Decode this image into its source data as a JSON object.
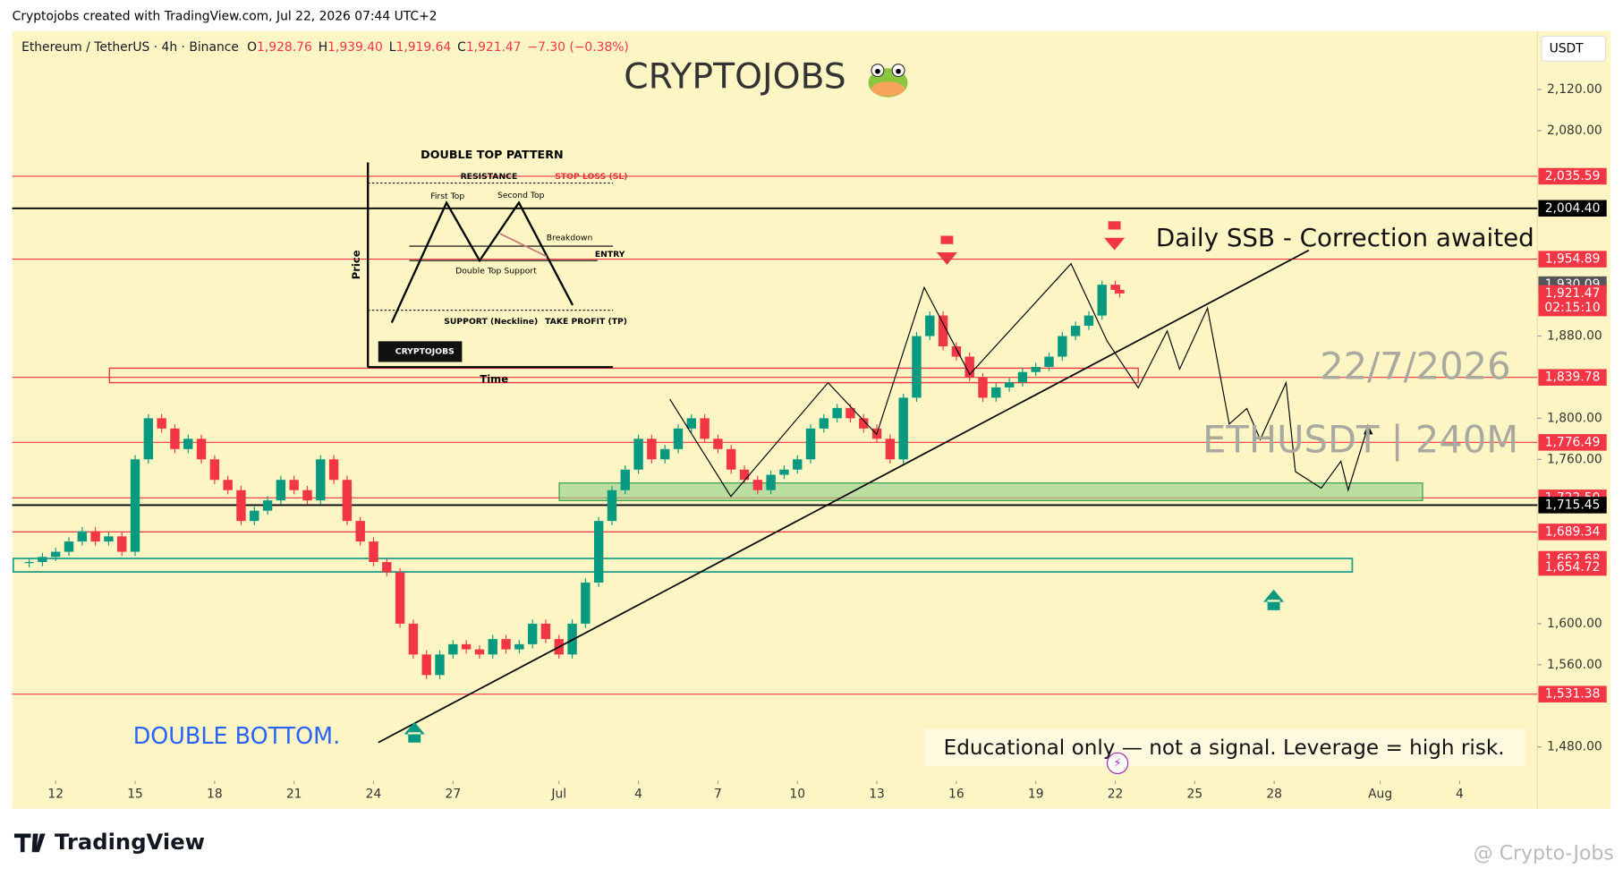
{
  "header": {
    "credit": "Cryptojobs created with TradingView.com, Jul 22, 2026 07:44 UTC+2",
    "symbol": "Ethereum / TetherUS · 4h · Binance",
    "ohlc": [
      {
        "label": "O",
        "value": "1,928.76"
      },
      {
        "label": "H",
        "value": "1,939.40"
      },
      {
        "label": "L",
        "value": "1,919.64"
      },
      {
        "label": "C",
        "value": "1,921.47"
      }
    ],
    "change": "−7.30 (−0.38%)",
    "currency": "USDT",
    "brand": "CRYPTOJOBS"
  },
  "annotations": {
    "ssb": "Daily SSB - Correction awaited",
    "date": "22/7/2026",
    "pair": "ETHUSDT | 240M",
    "double_bottom": "DOUBLE BOTTOM.",
    "disclaimer": "Educational only — not a signal. Leverage  = high risk."
  },
  "inset": {
    "title": "DOUBLE TOP PATTERN",
    "resistance": "RESISTANCE",
    "stop_loss": "STOP LOSS (SL)",
    "first_top": "First Top",
    "second_top": "Second Top",
    "breakdown": "Breakdown",
    "entry": "ENTRY",
    "support_label": "Double Top Support",
    "price": "Price",
    "neckline": "SUPPORT (Neckline)",
    "take_profit": "TAKE PROFIT (TP)",
    "logo": "CRYPTOJOBS",
    "time": "Time"
  },
  "footer": {
    "logo": "TradingView",
    "watermark": "@ Crypto-Jobs"
  },
  "chart_data": {
    "type": "candlestick",
    "up_color": "#089981",
    "down_color": "#f23645",
    "ylim": [
      1447,
      2177
    ],
    "yticks": [
      {
        "value": 1480,
        "label": "1,480.00"
      },
      {
        "value": 1560,
        "label": "1,560.00"
      },
      {
        "value": 1600,
        "label": "1,600.00"
      },
      {
        "value": 1760,
        "label": "1,760.00"
      },
      {
        "value": 1800,
        "label": "1,800.00"
      },
      {
        "value": 1880,
        "label": "1,880.00"
      },
      {
        "value": 2080,
        "label": "2,080.00"
      },
      {
        "value": 2120,
        "label": "2,120.00"
      }
    ],
    "xticks": [
      {
        "value": "2026-06-12",
        "label": "12"
      },
      {
        "value": "2026-06-15",
        "label": "15"
      },
      {
        "value": "2026-06-18",
        "label": "18"
      },
      {
        "value": "2026-06-21",
        "label": "21"
      },
      {
        "value": "2026-06-24",
        "label": "24"
      },
      {
        "value": "2026-06-27",
        "label": "27"
      },
      {
        "value": "2026-07-01",
        "label": "Jul"
      },
      {
        "value": "2026-07-04",
        "label": "4"
      },
      {
        "value": "2026-07-07",
        "label": "7"
      },
      {
        "value": "2026-07-10",
        "label": "10"
      },
      {
        "value": "2026-07-13",
        "label": "13"
      },
      {
        "value": "2026-07-16",
        "label": "16"
      },
      {
        "value": "2026-07-19",
        "label": "19"
      },
      {
        "value": "2026-07-22",
        "label": "22"
      },
      {
        "value": "2026-07-25",
        "label": "25"
      },
      {
        "value": "2026-07-28",
        "label": "28"
      },
      {
        "value": "2026-08-01",
        "label": "Aug"
      },
      {
        "value": "2026-08-04",
        "label": "4"
      }
    ],
    "x": [
      "2026-06-11T00:00",
      "2026-06-11T12:00",
      "2026-06-12T00:00",
      "2026-06-12T12:00",
      "2026-06-13T00:00",
      "2026-06-13T12:00",
      "2026-06-14T00:00",
      "2026-06-14T12:00",
      "2026-06-15T00:00",
      "2026-06-15T12:00",
      "2026-06-16T00:00",
      "2026-06-16T12:00",
      "2026-06-17T00:00",
      "2026-06-17T12:00",
      "2026-06-18T00:00",
      "2026-06-18T12:00",
      "2026-06-19T00:00",
      "2026-06-19T12:00",
      "2026-06-20T00:00",
      "2026-06-20T12:00",
      "2026-06-21T00:00",
      "2026-06-21T12:00",
      "2026-06-22T00:00",
      "2026-06-22T12:00",
      "2026-06-23T00:00",
      "2026-06-23T12:00",
      "2026-06-24T00:00",
      "2026-06-24T12:00",
      "2026-06-25T00:00",
      "2026-06-25T12:00",
      "2026-06-26T00:00",
      "2026-06-26T12:00",
      "2026-06-27T00:00",
      "2026-06-27T12:00",
      "2026-06-28T00:00",
      "2026-06-28T12:00",
      "2026-06-29T00:00",
      "2026-06-29T12:00",
      "2026-06-30T00:00",
      "2026-06-30T12:00",
      "2026-07-01T00:00",
      "2026-07-01T12:00",
      "2026-07-02T00:00",
      "2026-07-02T12:00",
      "2026-07-03T00:00",
      "2026-07-03T12:00",
      "2026-07-04T00:00",
      "2026-07-04T12:00",
      "2026-07-05T00:00",
      "2026-07-05T12:00",
      "2026-07-06T00:00",
      "2026-07-06T12:00",
      "2026-07-07T00:00",
      "2026-07-07T12:00",
      "2026-07-08T00:00",
      "2026-07-08T12:00",
      "2026-07-09T00:00",
      "2026-07-09T12:00",
      "2026-07-10T00:00",
      "2026-07-10T12:00",
      "2026-07-11T00:00",
      "2026-07-11T12:00",
      "2026-07-12T00:00",
      "2026-07-12T12:00",
      "2026-07-13T00:00",
      "2026-07-13T12:00",
      "2026-07-14T00:00",
      "2026-07-14T12:00",
      "2026-07-15T00:00",
      "2026-07-15T12:00",
      "2026-07-16T00:00",
      "2026-07-16T12:00",
      "2026-07-17T00:00",
      "2026-07-17T12:00",
      "2026-07-18T00:00",
      "2026-07-18T12:00",
      "2026-07-19T00:00",
      "2026-07-19T12:00",
      "2026-07-20T00:00",
      "2026-07-20T12:00",
      "2026-07-21T00:00",
      "2026-07-21T12:00",
      "2026-07-22T00:00",
      "2026-07-22T04:00"
    ],
    "close": [
      1660,
      1665,
      1670,
      1680,
      1690,
      1680,
      1685,
      1670,
      1760,
      1800,
      1790,
      1770,
      1780,
      1760,
      1740,
      1730,
      1700,
      1710,
      1720,
      1740,
      1730,
      1720,
      1760,
      1740,
      1700,
      1680,
      1660,
      1650,
      1600,
      1570,
      1550,
      1570,
      1580,
      1575,
      1570,
      1585,
      1575,
      1580,
      1600,
      1585,
      1570,
      1600,
      1640,
      1700,
      1730,
      1750,
      1780,
      1760,
      1770,
      1790,
      1800,
      1780,
      1770,
      1750,
      1740,
      1730,
      1745,
      1750,
      1760,
      1790,
      1800,
      1810,
      1800,
      1790,
      1780,
      1760,
      1820,
      1880,
      1900,
      1870,
      1860,
      1840,
      1820,
      1830,
      1835,
      1845,
      1850,
      1860,
      1880,
      1890,
      1900,
      1930,
      1925,
      1921.47
    ],
    "levels": [
      {
        "value": 2035.59,
        "label": "2,035.59",
        "color": "#f23645",
        "line": true
      },
      {
        "value": 2004.4,
        "label": "2,004.40",
        "color": "#000000",
        "line": true
      },
      {
        "value": 1954.89,
        "label": "1,954.89",
        "color": "#f23645",
        "line": true
      },
      {
        "value": 1930.09,
        "label": "1,930.09",
        "color": "#555555",
        "line": false
      },
      {
        "value": 1921.47,
        "label": "1,921.47",
        "color": "#f23645",
        "line": false,
        "sub": "02:15:10"
      },
      {
        "value": 1839.78,
        "label": "1,839.78",
        "color": "#f23645",
        "line": true
      },
      {
        "value": 1776.49,
        "label": "1,776.49",
        "color": "#f23645",
        "line": true
      },
      {
        "value": 1722.5,
        "label": "1,722.50",
        "color": "#f23645",
        "line": true
      },
      {
        "value": 1715.45,
        "label": "1,715.45",
        "color": "#000000",
        "line": true
      },
      {
        "value": 1689.34,
        "label": "1,689.34",
        "color": "#f23645",
        "line": true
      },
      {
        "value": 1662.68,
        "label": "1,662.68",
        "color": "#f23645",
        "line": false
      },
      {
        "value": 1654.72,
        "label": "1,654.72",
        "color": "#f23645",
        "line": false
      },
      {
        "value": 1531.38,
        "label": "1,531.38",
        "color": "#f23645",
        "line": true
      }
    ]
  }
}
